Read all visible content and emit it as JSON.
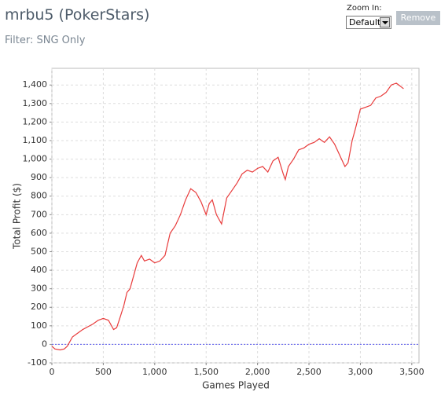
{
  "header": {
    "title": "mrbu5 (PokerStars)",
    "filter": "Filter: SNG Only",
    "zoom_label": "Zoom In:",
    "zoom_value": "Default",
    "remove_button": "Remove"
  },
  "chart_data": {
    "type": "line",
    "x_label": "Games Played",
    "y_label": "Total Profit ($)",
    "xlim": [
      0,
      3570
    ],
    "ylim": [
      -100,
      1490
    ],
    "xticks": [
      0,
      500,
      {
        "value": 1000,
        "label": "1,000"
      },
      {
        "value": 1500,
        "label": "1,500"
      },
      {
        "value": 2000,
        "label": "2,000"
      },
      {
        "value": 2500,
        "label": "2,500"
      },
      {
        "value": 3000,
        "label": "3,000"
      },
      {
        "value": 3500,
        "label": "3,500"
      }
    ],
    "yticks": [
      -100,
      0,
      100,
      200,
      300,
      400,
      500,
      600,
      700,
      800,
      900,
      {
        "value": 1000,
        "label": "1,000"
      },
      {
        "value": 1100,
        "label": "1,100"
      },
      {
        "value": 1200,
        "label": "1,200"
      },
      {
        "value": 1300,
        "label": "1,300"
      },
      {
        "value": 1400,
        "label": "1,400"
      }
    ],
    "grid": true,
    "x": [
      0,
      30,
      80,
      120,
      150,
      170,
      200,
      250,
      300,
      350,
      400,
      450,
      500,
      550,
      580,
      600,
      630,
      660,
      700,
      730,
      760,
      800,
      830,
      870,
      900,
      950,
      1000,
      1050,
      1100,
      1150,
      1200,
      1250,
      1300,
      1350,
      1400,
      1450,
      1500,
      1530,
      1560,
      1600,
      1650,
      1700,
      1750,
      1800,
      1850,
      1900,
      1950,
      2000,
      2050,
      2100,
      2150,
      2200,
      2250,
      2270,
      2300,
      2350,
      2400,
      2450,
      2500,
      2550,
      2600,
      2650,
      2700,
      2750,
      2800,
      2850,
      2880,
      2920,
      2950,
      3000,
      3050,
      3100,
      3150,
      3200,
      3250,
      3300,
      3350,
      3420
    ],
    "series": [
      {
        "color": "#e83b3b",
        "values": [
          -10,
          -25,
          -30,
          -25,
          -10,
          10,
          40,
          60,
          80,
          95,
          110,
          130,
          140,
          130,
          100,
          80,
          90,
          140,
          210,
          280,
          300,
          380,
          440,
          480,
          450,
          460,
          440,
          450,
          480,
          600,
          640,
          700,
          780,
          840,
          820,
          770,
          700,
          760,
          780,
          700,
          650,
          790,
          830,
          870,
          920,
          940,
          930,
          950,
          960,
          930,
          990,
          1010,
          920,
          890,
          960,
          1000,
          1050,
          1060,
          1080,
          1090,
          1110,
          1090,
          1120,
          1080,
          1020,
          960,
          980,
          1100,
          1160,
          1270,
          1280,
          1290,
          1330,
          1340,
          1360,
          1400,
          1410,
          1380
        ]
      }
    ]
  }
}
